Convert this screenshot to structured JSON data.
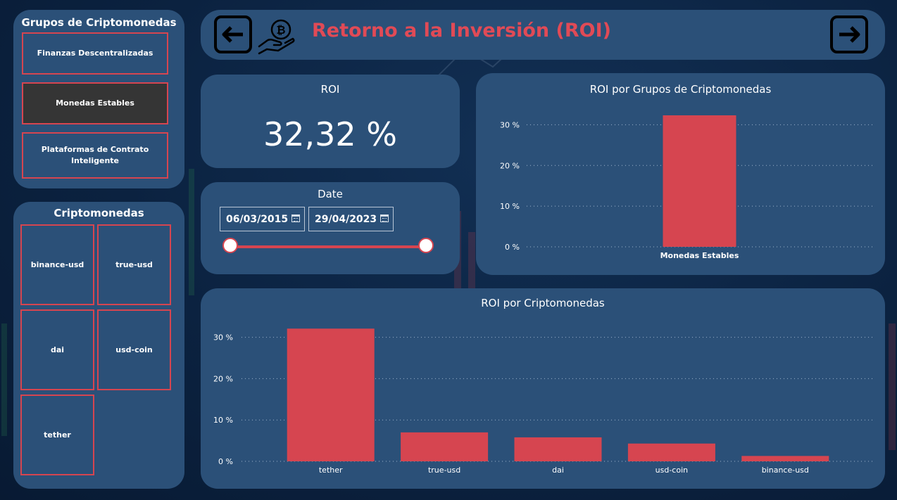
{
  "groups_slicer": {
    "title": "Grupos de Criptomonedas",
    "items": [
      {
        "label": "Finanzas Descentralizadas",
        "selected": false
      },
      {
        "label": "Monedas Estables",
        "selected": true
      },
      {
        "label": "Plataformas de Contrato Inteligente",
        "selected": false
      }
    ]
  },
  "coins_slicer": {
    "title": "Criptomonedas",
    "items": [
      "binance-usd",
      "true-usd",
      "dai",
      "usd-coin",
      "tether"
    ]
  },
  "header": {
    "title": "Retorno a la Inversión (ROI)",
    "back_icon": "arrow-left-icon",
    "forward_icon": "arrow-right-icon",
    "logo_icon": "bitcoin-hand-icon"
  },
  "kpi": {
    "label": "ROI",
    "value": "32,32 %"
  },
  "date_slicer": {
    "title": "Date",
    "start": "06/03/2015",
    "end": "29/04/2023",
    "range_fraction": [
      0,
      1
    ]
  },
  "colors": {
    "accent": "#d64550",
    "panel": "#2b5078",
    "background": "#0b2240",
    "title": "#e14a56"
  },
  "chart_data": [
    {
      "type": "bar",
      "title": "ROI por Grupos de Criptomonedas",
      "categories": [
        "Monedas Estables"
      ],
      "values": [
        32.32
      ],
      "ylim": [
        0,
        32.32
      ],
      "yticks": [
        "0 %",
        "10 %",
        "20 %",
        "30 %"
      ],
      "grid": true
    },
    {
      "type": "bar",
      "title": "ROI por Criptomonedas",
      "categories": [
        "tether",
        "true-usd",
        "dai",
        "usd-coin",
        "binance-usd"
      ],
      "values": [
        32.1,
        7.0,
        5.8,
        4.3,
        1.3
      ],
      "ylim": [
        0,
        32.32
      ],
      "yticks": [
        "0 %",
        "10 %",
        "20 %",
        "30 %"
      ],
      "grid": true
    }
  ]
}
